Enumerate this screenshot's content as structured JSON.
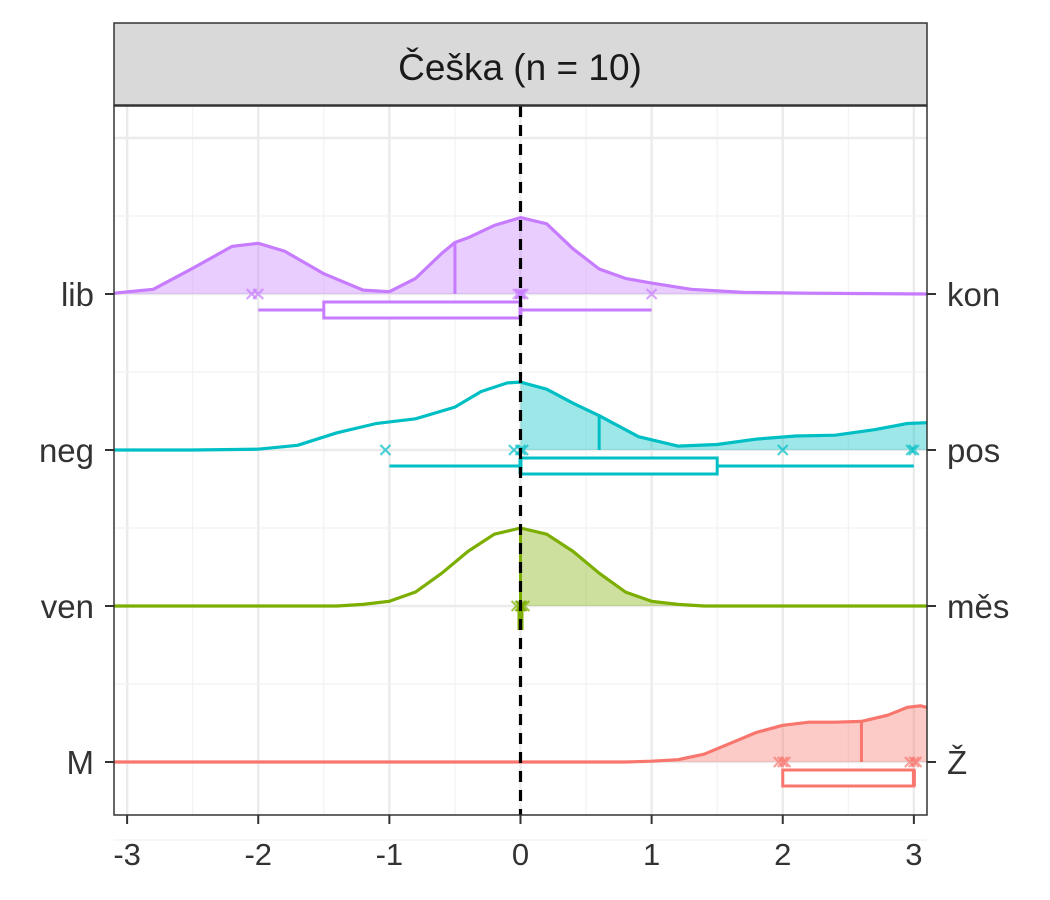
{
  "chart_data": {
    "type": "ridgeline-boxplot",
    "panel_title": "Češka (n = 10)",
    "xlim": [
      -3.1,
      3.1
    ],
    "x_ticks": [
      -3,
      -2,
      -1,
      0,
      1,
      2,
      3
    ],
    "x_tick_labels": [
      "-3",
      "-2",
      "-1",
      "0",
      "1",
      "2",
      "3"
    ],
    "reference_line_x": 0,
    "grid": true,
    "series": [
      {
        "left_label": "lib",
        "right_label": "kon",
        "color": "#C77CFF",
        "mean": -0.5,
        "points": [
          -2.05,
          -2.0,
          -0.02,
          0,
          0,
          0.02,
          1.0
        ],
        "box": {
          "min": -2.0,
          "q1": -1.5,
          "median": 0,
          "q3": 0,
          "max": 1.0
        },
        "density": [
          [
            -3.1,
            0.01
          ],
          [
            -2.8,
            0.06
          ],
          [
            -2.5,
            0.33
          ],
          [
            -2.2,
            0.61
          ],
          [
            -2.0,
            0.65
          ],
          [
            -1.8,
            0.55
          ],
          [
            -1.5,
            0.26
          ],
          [
            -1.2,
            0.05
          ],
          [
            -1.0,
            0.03
          ],
          [
            -0.8,
            0.2
          ],
          [
            -0.6,
            0.52
          ],
          [
            -0.5,
            0.66
          ],
          [
            -0.4,
            0.72
          ],
          [
            -0.2,
            0.88
          ],
          [
            0,
            0.98
          ],
          [
            0.2,
            0.9
          ],
          [
            0.4,
            0.58
          ],
          [
            0.6,
            0.32
          ],
          [
            0.8,
            0.2
          ],
          [
            1.0,
            0.14
          ],
          [
            1.3,
            0.06
          ],
          [
            1.7,
            0.02
          ],
          [
            2.2,
            0.01
          ],
          [
            3.1,
            0
          ]
        ]
      },
      {
        "left_label": "neg",
        "right_label": "pos",
        "color": "#00BFC4",
        "mean": 0.6,
        "points": [
          -1.03,
          -0.05,
          0,
          0.02,
          2.0,
          3.0,
          2.98
        ],
        "box": {
          "min": -1.0,
          "q1": 0,
          "median": 0,
          "q3": 1.5,
          "max": 3.0
        },
        "density": [
          [
            -3.1,
            0
          ],
          [
            -2.5,
            0
          ],
          [
            -2.0,
            0.01
          ],
          [
            -1.7,
            0.06
          ],
          [
            -1.4,
            0.22
          ],
          [
            -1.1,
            0.34
          ],
          [
            -0.8,
            0.4
          ],
          [
            -0.5,
            0.55
          ],
          [
            -0.3,
            0.75
          ],
          [
            -0.1,
            0.86
          ],
          [
            0,
            0.87
          ],
          [
            0.2,
            0.78
          ],
          [
            0.4,
            0.6
          ],
          [
            0.6,
            0.44
          ],
          [
            0.9,
            0.17
          ],
          [
            1.2,
            0.05
          ],
          [
            1.5,
            0.07
          ],
          [
            1.8,
            0.14
          ],
          [
            2.1,
            0.18
          ],
          [
            2.4,
            0.19
          ],
          [
            2.7,
            0.26
          ],
          [
            2.95,
            0.34
          ],
          [
            3.1,
            0.35
          ]
        ]
      },
      {
        "left_label": "ven",
        "right_label": "měs",
        "color": "#7CAE00",
        "mean": 0,
        "points": [
          -0.03,
          0,
          0,
          0.01,
          0.03
        ],
        "box": {
          "min": 0,
          "q1": 0,
          "median": 0,
          "q3": 0,
          "max": 0
        },
        "density": [
          [
            -3.1,
            0
          ],
          [
            -1.4,
            0
          ],
          [
            -1.2,
            0.02
          ],
          [
            -1.0,
            0.06
          ],
          [
            -0.8,
            0.18
          ],
          [
            -0.6,
            0.42
          ],
          [
            -0.4,
            0.7
          ],
          [
            -0.2,
            0.92
          ],
          [
            0,
            1.0
          ],
          [
            0.2,
            0.92
          ],
          [
            0.4,
            0.7
          ],
          [
            0.6,
            0.42
          ],
          [
            0.8,
            0.18
          ],
          [
            1.0,
            0.06
          ],
          [
            1.2,
            0.02
          ],
          [
            1.4,
            0
          ],
          [
            3.1,
            0
          ]
        ]
      },
      {
        "left_label": "M",
        "right_label": "Ž",
        "color": "#F8766D",
        "mean": 2.6,
        "points": [
          1.97,
          2.0,
          2.02,
          2.97,
          3.0,
          3.02
        ],
        "box": {
          "min": 2.0,
          "q1": 2.0,
          "median": 3.0,
          "q3": 3.0,
          "max": 3.0
        },
        "density": [
          [
            -3.1,
            0
          ],
          [
            0.8,
            0
          ],
          [
            1.0,
            0.01
          ],
          [
            1.2,
            0.03
          ],
          [
            1.4,
            0.1
          ],
          [
            1.6,
            0.24
          ],
          [
            1.8,
            0.38
          ],
          [
            2.0,
            0.47
          ],
          [
            2.2,
            0.51
          ],
          [
            2.4,
            0.51
          ],
          [
            2.6,
            0.52
          ],
          [
            2.8,
            0.6
          ],
          [
            2.95,
            0.7
          ],
          [
            3.05,
            0.72
          ],
          [
            3.1,
            0.7
          ]
        ]
      }
    ]
  }
}
